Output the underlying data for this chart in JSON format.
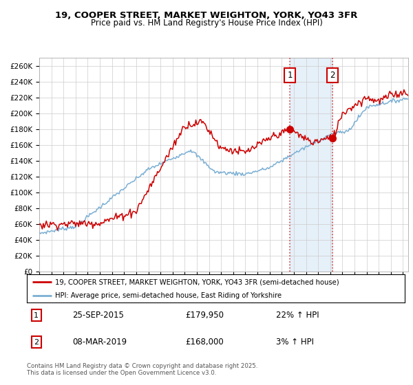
{
  "title": "19, COOPER STREET, MARKET WEIGHTON, YORK, YO43 3FR",
  "subtitle": "Price paid vs. HM Land Registry's House Price Index (HPI)",
  "ylim": [
    0,
    270000
  ],
  "yticks": [
    0,
    20000,
    40000,
    60000,
    80000,
    100000,
    120000,
    140000,
    160000,
    180000,
    200000,
    220000,
    240000,
    260000
  ],
  "line1_color": "#cc0000",
  "line2_color": "#7aafd4",
  "shading_color": "#c8dff0",
  "legend_line1": "19, COOPER STREET, MARKET WEIGHTON, YORK, YO43 3FR (semi-detached house)",
  "legend_line2": "HPI: Average price, semi-detached house, East Riding of Yorkshire",
  "footer": "Contains HM Land Registry data © Crown copyright and database right 2025.\nThis data is licensed under the Open Government Licence v3.0.",
  "background_color": "#ffffff",
  "plot_bg_color": "#ffffff",
  "anno_box_color": "#cc0000",
  "grid_color": "#cccccc"
}
